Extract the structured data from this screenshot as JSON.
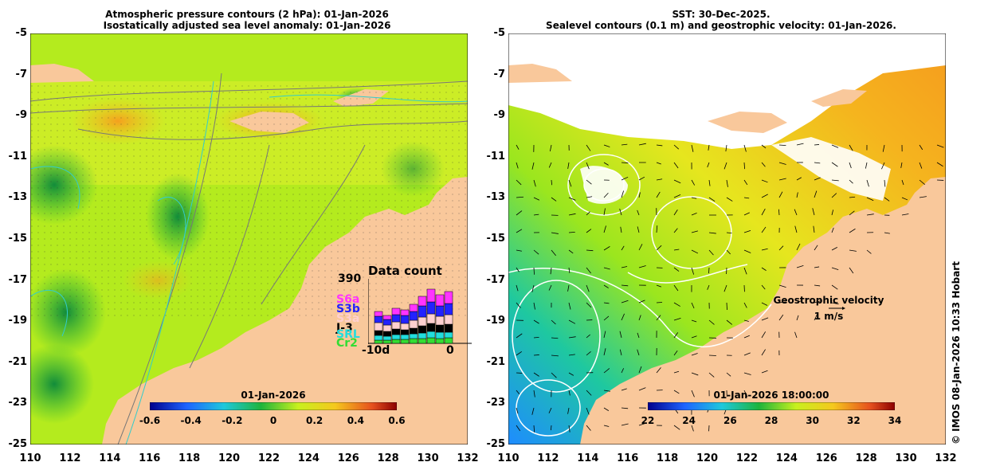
{
  "left_map": {
    "title_line1": "Atmospheric pressure contours (2 hPa): 01-Jan-2026",
    "title_line2": "Isostatically adjusted sea level anomaly: 01-Jan-2026",
    "colorbar_title": "01-Jan-2026",
    "colorbar_ticks": [
      "-0.6",
      "-0.4",
      "-0.2",
      "0",
      "0.2",
      "0.4",
      "0.6"
    ],
    "data_count": {
      "title": "Data count",
      "max_label": "390",
      "start_label": "-10d",
      "end_label": "0",
      "satellites": [
        {
          "name": "S6a",
          "color": "#ff33ff"
        },
        {
          "name": "S3b",
          "color": "#2222ff"
        },
        {
          "name": "S3a",
          "color": "#ffd0d0"
        },
        {
          "name": "J-3",
          "color": "#000000"
        },
        {
          "name": "SRL",
          "color": "#22dddd"
        },
        {
          "name": "Cr2",
          "color": "#33dd33"
        }
      ]
    }
  },
  "right_map": {
    "title_line1": "SST: 30-Dec-2025.",
    "title_line2": "Sealevel contours (0.1 m) and geostrophic velocity: 01-Jan-2026.",
    "colorbar_title": "01-Jan-2026 18:00:00",
    "colorbar_ticks": [
      "22",
      "24",
      "26",
      "28",
      "30",
      "32",
      "34"
    ],
    "velocity_label_line1": "Geostrophic velocity",
    "velocity_label_line2": "1 m/s"
  },
  "y_axis_labels": [
    "-5",
    "-7",
    "-9",
    "-11",
    "-13",
    "-15",
    "-17",
    "-19",
    "-21",
    "-23",
    "-25"
  ],
  "x_axis_labels": [
    "110",
    "112",
    "114",
    "116",
    "118",
    "120",
    "122",
    "124",
    "126",
    "128",
    "130",
    "132"
  ],
  "credit": "© IMOS 08-Jan-2026 10:33 Hobart",
  "colors": {
    "land": "#f9c89b",
    "ocean_green": "#9be61e",
    "ocean_lime": "#c8f01e",
    "ocean_dark_green": "#1eb43c",
    "ocean_orange": "#f5b41e",
    "sst_blue": "#1e8cff",
    "sst_yellow": "#f0e61e",
    "sst_orange": "#f5a01e"
  }
}
